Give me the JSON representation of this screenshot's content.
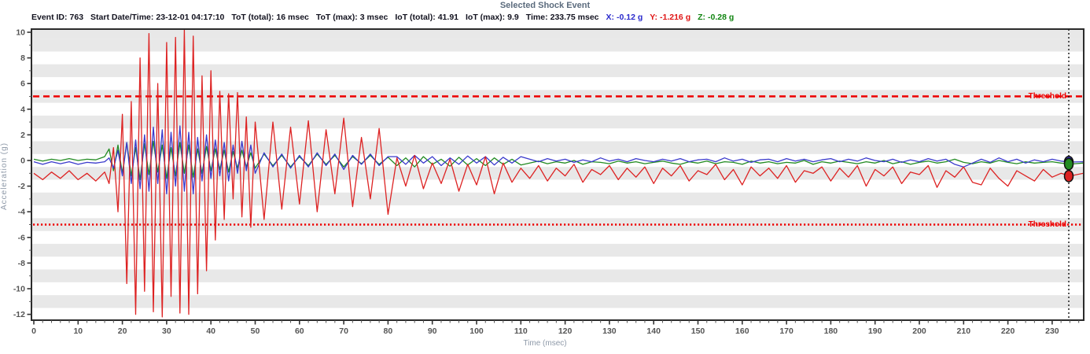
{
  "page": {
    "title": "Selected Shock Event"
  },
  "header": {
    "fields": [
      {
        "label": "Event ID:",
        "value": "763"
      },
      {
        "label": "Start Date/Time:",
        "value": "23-12-01 04:17:10"
      },
      {
        "label": "ToT (total):",
        "value": "16 msec"
      },
      {
        "label": "ToT (max):",
        "value": "3 msec"
      },
      {
        "label": "IoT (total):",
        "value": "41.91"
      },
      {
        "label": "IoT (max):",
        "value": "9.9"
      },
      {
        "label": "Time:",
        "value": "233.75 msec"
      },
      {
        "label": "X:",
        "value": "-0.12 g",
        "color": "#2a2acc"
      },
      {
        "label": "Y:",
        "value": "-1.216 g",
        "color": "#e01515"
      },
      {
        "label": "Z:",
        "value": "-0.28 g",
        "color": "#118511"
      }
    ]
  },
  "colors": {
    "x_trace": "#3a3acc",
    "y_trace": "#dd2222",
    "z_trace": "#228b22",
    "threshold": "#ee0000",
    "stripe": "#e8e8e8",
    "border": "#2b2b2b",
    "cursor": "#111111",
    "tick": "#545454",
    "title": "#5b6b7d",
    "axis_label": "#8e99a8"
  },
  "chart_data": {
    "type": "line",
    "title": "Selected Shock Event",
    "xlabel": "Time (msec)",
    "ylabel": "Acceleration (g)",
    "xlim": [
      0,
      237
    ],
    "ylim": [
      -12.5,
      10.2
    ],
    "x_ticks": [
      0,
      10,
      20,
      30,
      40,
      50,
      60,
      70,
      80,
      90,
      100,
      110,
      120,
      130,
      140,
      150,
      160,
      170,
      180,
      190,
      200,
      210,
      220,
      230
    ],
    "y_ticks": [
      -12,
      -10,
      -8,
      -6,
      -4,
      -2,
      0,
      2,
      4,
      6,
      8,
      10
    ],
    "x_minor_step": 2,
    "y_minor_step": 1,
    "grid": "horizontal-stripes",
    "legend": "none",
    "threshold": {
      "high": 5,
      "low": -5,
      "label": "Threshold"
    },
    "cursor": {
      "time": 233.75,
      "x": -0.12,
      "y": -1.216,
      "z": -0.28
    },
    "t": [
      0,
      2,
      4,
      6,
      8,
      10,
      12,
      14,
      16,
      17,
      18,
      19,
      20,
      21,
      22,
      23,
      24,
      25,
      26,
      27,
      28,
      29,
      30,
      31,
      32,
      33,
      34,
      35,
      36,
      37,
      38,
      39,
      40,
      41,
      42,
      43,
      44,
      45,
      46,
      47,
      48,
      49,
      50,
      52,
      54,
      56,
      58,
      60,
      62,
      64,
      66,
      68,
      70,
      72,
      74,
      76,
      78,
      80,
      82,
      84,
      86,
      88,
      90,
      92,
      94,
      96,
      98,
      100,
      102,
      104,
      106,
      108,
      110,
      112,
      114,
      116,
      118,
      120,
      122,
      124,
      126,
      128,
      130,
      132,
      134,
      136,
      138,
      140,
      142,
      144,
      146,
      148,
      150,
      152,
      154,
      156,
      158,
      160,
      162,
      164,
      166,
      168,
      170,
      172,
      174,
      176,
      178,
      180,
      182,
      184,
      186,
      188,
      190,
      192,
      194,
      196,
      198,
      200,
      202,
      204,
      206,
      208,
      210,
      212,
      214,
      216,
      218,
      220,
      222,
      224,
      226,
      228,
      230,
      232,
      234,
      237
    ],
    "series": [
      {
        "name": "X",
        "color": "#3a3acc",
        "values": [
          -0.1,
          -0.3,
          -0.1,
          -0.25,
          -0.1,
          -0.3,
          -0.15,
          -0.2,
          -0.1,
          0.2,
          -0.6,
          0.8,
          -1.2,
          1.4,
          -1.8,
          1.6,
          -2.2,
          2.0,
          -2.4,
          2.6,
          -1.8,
          2.4,
          -2.6,
          2.2,
          -2.0,
          2.7,
          -2.4,
          2.2,
          -2.6,
          1.8,
          -1.6,
          2.0,
          -1.4,
          1.6,
          -1.2,
          1.4,
          -1.6,
          1.2,
          -1.0,
          1.5,
          -0.8,
          1.2,
          -1.0,
          0.6,
          -0.5,
          0.5,
          -0.6,
          0.4,
          -0.5,
          0.6,
          -0.4,
          0.5,
          -0.7,
          0.4,
          -0.3,
          0.5,
          -0.4,
          0.3,
          0.3,
          -0.3,
          0.4,
          -0.2,
          0.3,
          -0.4,
          0.2,
          -0.3,
          0.35,
          -0.2,
          0.3,
          -0.35,
          0.25,
          -0.2,
          0.3,
          0.1,
          -0.1,
          0.15,
          -0.05,
          0.1,
          -0.15,
          0.05,
          -0.1,
          0.2,
          -0.05,
          0.1,
          -0.1,
          0.15,
          0.0,
          -0.1,
          0.1,
          -0.05,
          0.15,
          -0.1,
          0.05,
          0.1,
          -0.1,
          0.2,
          -0.05,
          0.1,
          -0.15,
          0.05,
          0.1,
          -0.1,
          0.15,
          -0.05,
          0.1,
          -0.1,
          0.05,
          0.15,
          -0.1,
          0.1,
          -0.05,
          0.2,
          0.0,
          -0.1,
          0.1,
          -0.15,
          0.05,
          -0.1,
          0.15,
          -0.05,
          0.1,
          -0.3,
          -0.5,
          -0.2,
          0.1,
          -0.15,
          0.2,
          -0.1,
          0.1,
          -0.2,
          0.05,
          -0.1,
          0.1,
          -0.05,
          -0.12,
          -0.1
        ]
      },
      {
        "name": "Y",
        "color": "#dd2222",
        "values": [
          -1.0,
          -1.5,
          -0.9,
          -1.4,
          -0.8,
          -1.5,
          -1.0,
          -1.6,
          -0.9,
          -1.8,
          1.0,
          -4.0,
          3.6,
          -9.6,
          4.6,
          -12.0,
          8.0,
          -10.2,
          9.9,
          -11.8,
          6.0,
          -12.2,
          9.2,
          -10.6,
          9.6,
          -11.9,
          10.2,
          -12.0,
          9.7,
          -10.4,
          6.6,
          -8.6,
          7.0,
          -6.2,
          5.4,
          -4.6,
          5.2,
          -3.0,
          5.3,
          -4.4,
          3.4,
          -5.2,
          3.0,
          -4.6,
          3.0,
          -3.8,
          2.6,
          -3.4,
          3.1,
          -4.0,
          2.4,
          -2.6,
          3.3,
          -3.6,
          1.8,
          -3.0,
          2.5,
          -4.2,
          0.2,
          -2.0,
          0.4,
          -2.2,
          -0.2,
          -1.8,
          0.1,
          -2.4,
          -0.3,
          -1.9,
          0.3,
          -2.6,
          -0.2,
          -1.7,
          -0.6,
          -1.4,
          -0.4,
          -1.6,
          -0.6,
          -1.2,
          -0.3,
          -1.7,
          -0.7,
          -1.1,
          -0.4,
          -1.5,
          -0.6,
          -1.3,
          -0.5,
          -1.8,
          -0.6,
          -1.2,
          -0.4,
          -1.6,
          -0.8,
          -1.1,
          -0.3,
          -1.5,
          -0.7,
          -1.9,
          -0.5,
          -1.2,
          -0.6,
          -1.4,
          -0.4,
          -1.7,
          -0.8,
          -1.0,
          -0.5,
          -1.6,
          -0.6,
          -1.3,
          -0.4,
          -2.0,
          -0.7,
          -1.2,
          -0.5,
          -1.8,
          -0.9,
          -1.1,
          -0.4,
          -2.1,
          -0.8,
          -1.3,
          -0.5,
          -1.7,
          -1.9,
          -0.6,
          -1.4,
          -2.0,
          -0.8,
          -1.2,
          -1.6,
          -0.7,
          -1.3,
          -1.0,
          -1.216,
          -1.0
        ]
      },
      {
        "name": "Z",
        "color": "#228b22",
        "values": [
          0.1,
          -0.05,
          0.1,
          0.0,
          0.15,
          0.0,
          0.1,
          0.05,
          0.3,
          0.9,
          -0.8,
          1.2,
          -1.0,
          1.4,
          -1.2,
          1.0,
          -1.5,
          1.3,
          -1.1,
          1.5,
          -0.9,
          1.2,
          -1.4,
          1.0,
          -1.2,
          1.4,
          -1.0,
          1.2,
          -1.3,
          0.9,
          -1.0,
          1.1,
          -0.8,
          0.9,
          -0.7,
          0.8,
          -0.9,
          0.7,
          -0.6,
          0.8,
          -0.5,
          0.6,
          -0.6,
          0.5,
          -0.4,
          0.4,
          -0.5,
          0.3,
          -0.4,
          0.5,
          -0.3,
          0.4,
          -0.5,
          0.3,
          -0.25,
          0.4,
          -0.3,
          0.25,
          -0.4,
          0.2,
          -0.5,
          0.3,
          -0.3,
          0.1,
          -0.45,
          0.25,
          -0.35,
          0.15,
          -0.4,
          0.2,
          -0.3,
          0.1,
          -0.35,
          -0.2,
          -0.05,
          -0.25,
          -0.1,
          -0.2,
          0.0,
          -0.3,
          -0.1,
          -0.15,
          -0.25,
          -0.05,
          -0.2,
          -0.1,
          -0.25,
          -0.15,
          -0.05,
          -0.2,
          -0.3,
          -0.1,
          -0.2,
          -0.05,
          -0.25,
          -0.1,
          -0.15,
          -0.3,
          -0.05,
          -0.2,
          -0.1,
          -0.25,
          -0.15,
          -0.2,
          0.0,
          -0.3,
          -0.1,
          -0.2,
          -0.05,
          -0.15,
          -0.25,
          -0.1,
          -0.2,
          0.0,
          -0.25,
          -0.1,
          -0.3,
          -0.15,
          -0.05,
          -0.2,
          -0.1,
          0.1,
          -0.15,
          -0.25,
          -0.1,
          -0.2,
          0.0,
          -0.15,
          -0.25,
          -0.1,
          -0.2,
          -0.15,
          -0.1,
          -0.2,
          -0.28,
          -0.2
        ]
      }
    ]
  }
}
